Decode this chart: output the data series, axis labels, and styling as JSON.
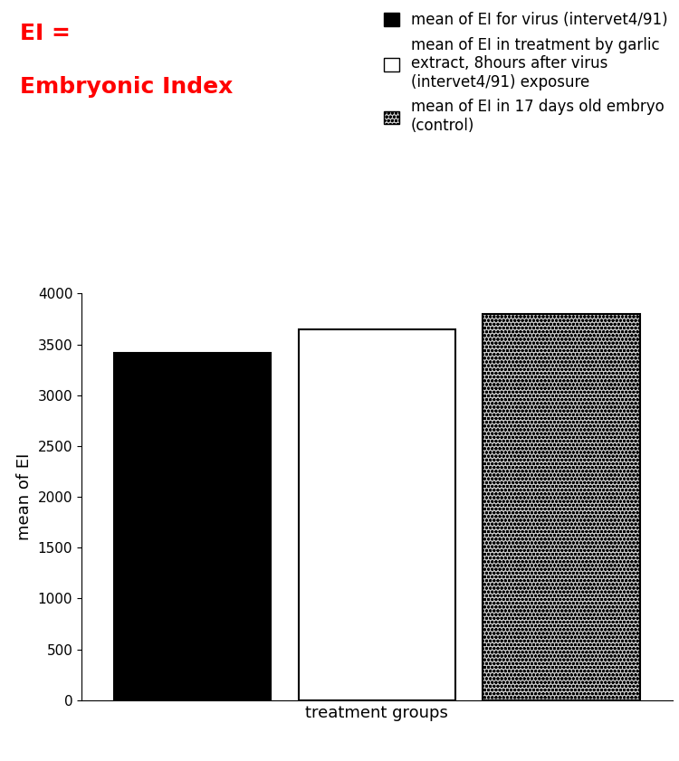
{
  "bar_values": [
    3420,
    3650,
    3800
  ],
  "bar_labels": [
    "mean of EI for virus (intervet4/91)",
    "mean of EI in treatment by garlic\nextract, 8hours after virus\n(intervet4/91) exposure",
    "mean of EI in 17 days old embryo\n(control)"
  ],
  "ylabel": "mean of EI",
  "xlabel": "treatment groups",
  "ylim": [
    0,
    4000
  ],
  "yticks": [
    0,
    500,
    1000,
    1500,
    2000,
    2500,
    3000,
    3500,
    4000
  ],
  "annotation_line1": "EI =",
  "annotation_line2": "Embryonic Index",
  "annotation_color": "#ff0000",
  "background_color": "#ffffff",
  "axis_fontsize": 13,
  "legend_fontsize": 12,
  "annotation_fontsize": 18
}
